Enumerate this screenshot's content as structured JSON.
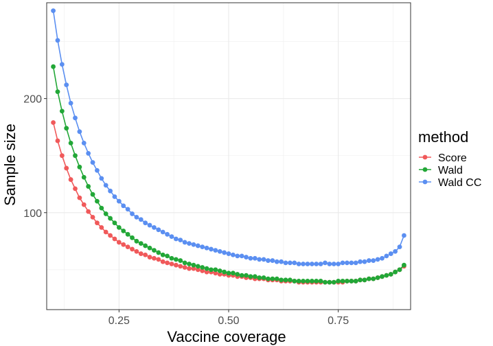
{
  "chart_data": {
    "type": "line",
    "xlabel": "Vaccine coverage",
    "ylabel": "Sample size",
    "xlim": [
      0.085,
      0.915
    ],
    "ylim": [
      15,
      284
    ],
    "x_ticks": [
      0.25,
      0.5,
      0.75
    ],
    "x_tick_labels": [
      "0.25",
      "0.50",
      "0.75"
    ],
    "y_ticks": [
      100,
      200
    ],
    "y_tick_labels": [
      "100",
      "200"
    ],
    "grid": true,
    "legend": {
      "title": "method",
      "position": "right"
    },
    "x": [
      0.1,
      0.11,
      0.12,
      0.13,
      0.14,
      0.15,
      0.16,
      0.17,
      0.18,
      0.19,
      0.2,
      0.21,
      0.22,
      0.23,
      0.24,
      0.25,
      0.26,
      0.27,
      0.28,
      0.29,
      0.3,
      0.31,
      0.32,
      0.33,
      0.34,
      0.35,
      0.36,
      0.37,
      0.38,
      0.39,
      0.4,
      0.41,
      0.42,
      0.43,
      0.44,
      0.45,
      0.46,
      0.47,
      0.48,
      0.49,
      0.5,
      0.51,
      0.52,
      0.53,
      0.54,
      0.55,
      0.56,
      0.57,
      0.58,
      0.59,
      0.6,
      0.61,
      0.62,
      0.63,
      0.64,
      0.65,
      0.66,
      0.67,
      0.68,
      0.69,
      0.7,
      0.71,
      0.72,
      0.73,
      0.74,
      0.75,
      0.76,
      0.77,
      0.78,
      0.79,
      0.8,
      0.81,
      0.82,
      0.83,
      0.84,
      0.85,
      0.86,
      0.87,
      0.88,
      0.89,
      0.9
    ],
    "series": [
      {
        "name": "Score",
        "color": "#f0595a",
        "values": [
          179,
          163,
          150,
          139,
          129,
          121,
          113,
          107,
          101,
          96,
          91,
          87,
          83,
          80,
          77,
          74,
          72,
          70,
          68,
          66,
          64,
          63,
          61,
          60,
          59,
          57,
          56,
          55,
          54,
          53,
          52,
          51,
          51,
          50,
          49,
          48,
          48,
          47,
          46,
          46,
          45,
          45,
          44,
          44,
          43,
          43,
          42,
          42,
          42,
          41,
          41,
          41,
          40,
          40,
          40,
          40,
          39,
          39,
          39,
          39,
          39,
          39,
          39,
          39,
          39,
          39,
          39,
          40,
          40,
          40,
          41,
          41,
          42,
          42,
          43,
          44,
          45,
          46,
          48,
          50,
          53
        ]
      },
      {
        "name": "Wald",
        "color": "#22a737",
        "values": [
          228,
          206,
          189,
          174,
          161,
          150,
          140,
          131,
          123,
          116,
          110,
          104,
          99,
          95,
          91,
          87,
          84,
          81,
          78,
          75,
          73,
          71,
          69,
          67,
          65,
          63,
          62,
          60,
          59,
          58,
          56,
          55,
          54,
          53,
          52,
          51,
          50,
          50,
          49,
          48,
          47,
          47,
          46,
          45,
          45,
          44,
          44,
          43,
          43,
          42,
          42,
          42,
          41,
          41,
          41,
          40,
          40,
          40,
          40,
          40,
          40,
          40,
          39,
          39,
          39,
          40,
          40,
          40,
          40,
          40,
          41,
          41,
          42,
          42,
          43,
          44,
          45,
          46,
          48,
          50,
          54
        ]
      },
      {
        "name": "Wald CC",
        "color": "#5b8ff1",
        "values": [
          277,
          251,
          230,
          212,
          196,
          183,
          171,
          161,
          152,
          144,
          137,
          130,
          124,
          119,
          114,
          110,
          106,
          103,
          99,
          96,
          94,
          91,
          89,
          87,
          85,
          83,
          81,
          79,
          77,
          76,
          74,
          73,
          72,
          71,
          70,
          69,
          68,
          67,
          66,
          65,
          64,
          63,
          62,
          62,
          61,
          60,
          60,
          59,
          59,
          58,
          58,
          57,
          57,
          56,
          56,
          56,
          55,
          55,
          55,
          55,
          55,
          55,
          56,
          55,
          55,
          55,
          56,
          56,
          56,
          56,
          57,
          57,
          58,
          58,
          59,
          60,
          62,
          64,
          66,
          70,
          80
        ]
      }
    ]
  }
}
